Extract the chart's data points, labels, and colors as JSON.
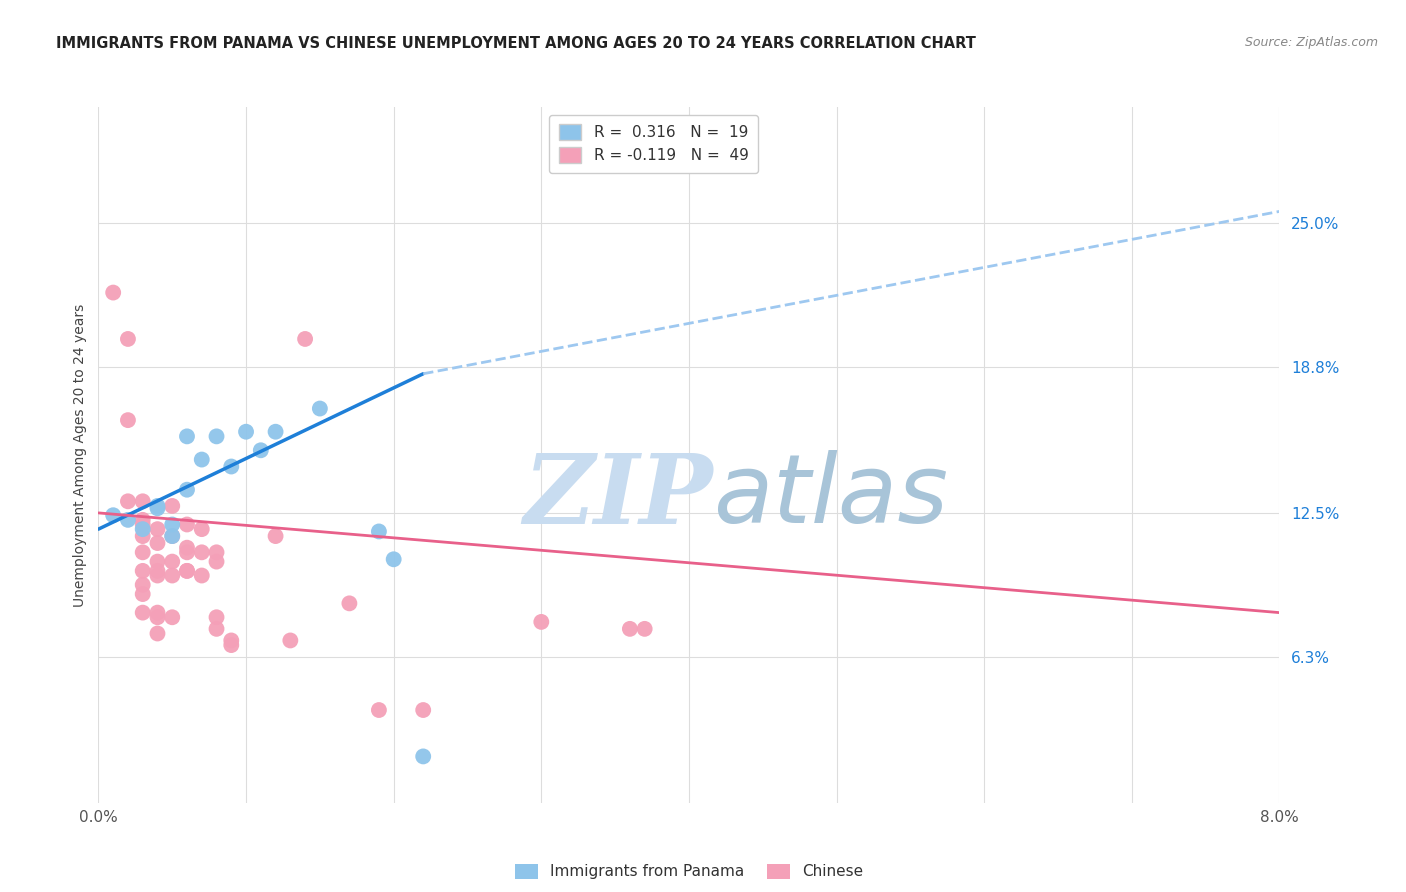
{
  "title": "IMMIGRANTS FROM PANAMA VS CHINESE UNEMPLOYMENT AMONG AGES 20 TO 24 YEARS CORRELATION CHART",
  "source": "Source: ZipAtlas.com",
  "ylabel": "Unemployment Among Ages 20 to 24 years",
  "right_yticks": [
    0.063,
    0.125,
    0.188,
    0.25
  ],
  "right_ytick_labels": [
    "6.3%",
    "12.5%",
    "18.8%",
    "25.0%"
  ],
  "legend_r_entries": [
    {
      "label_r": "R = ",
      "r_val": "0.316",
      "label_n": "  N = ",
      "n_val": "19",
      "color": "#8EC4EA"
    },
    {
      "label_r": "R = ",
      "r_val": "-0.119",
      "label_n": "  N = ",
      "n_val": "49",
      "color": "#F4A0B8"
    }
  ],
  "legend_bottom": [
    "Immigrants from Panama",
    "Chinese"
  ],
  "panama_color": "#8EC4EA",
  "chinese_color": "#F4A0B8",
  "panama_line_color": "#1E7FD8",
  "chinese_line_color": "#E8608A",
  "dashed_line_color": "#9EC8F0",
  "background": "#FFFFFF",
  "grid_color": "#DDDDDD",
  "watermark_zip": "ZIP",
  "watermark_atlas": "atlas",
  "watermark_color_zip": "#C8DCF0",
  "watermark_color_atlas": "#A8C4D8",
  "panama_points": [
    [
      0.001,
      0.124
    ],
    [
      0.002,
      0.122
    ],
    [
      0.003,
      0.118
    ],
    [
      0.004,
      0.128
    ],
    [
      0.004,
      0.127
    ],
    [
      0.005,
      0.115
    ],
    [
      0.005,
      0.12
    ],
    [
      0.006,
      0.135
    ],
    [
      0.006,
      0.158
    ],
    [
      0.007,
      0.148
    ],
    [
      0.008,
      0.158
    ],
    [
      0.009,
      0.145
    ],
    [
      0.01,
      0.16
    ],
    [
      0.011,
      0.152
    ],
    [
      0.012,
      0.16
    ],
    [
      0.015,
      0.17
    ],
    [
      0.019,
      0.117
    ],
    [
      0.02,
      0.105
    ],
    [
      0.022,
      0.02
    ]
  ],
  "chinese_points": [
    [
      0.001,
      0.22
    ],
    [
      0.002,
      0.2
    ],
    [
      0.002,
      0.13
    ],
    [
      0.002,
      0.165
    ],
    [
      0.003,
      0.13
    ],
    [
      0.003,
      0.12
    ],
    [
      0.003,
      0.115
    ],
    [
      0.003,
      0.108
    ],
    [
      0.003,
      0.122
    ],
    [
      0.003,
      0.1
    ],
    [
      0.003,
      0.094
    ],
    [
      0.003,
      0.09
    ],
    [
      0.003,
      0.082
    ],
    [
      0.004,
      0.118
    ],
    [
      0.004,
      0.112
    ],
    [
      0.004,
      0.104
    ],
    [
      0.004,
      0.082
    ],
    [
      0.004,
      0.1
    ],
    [
      0.004,
      0.098
    ],
    [
      0.004,
      0.08
    ],
    [
      0.004,
      0.073
    ],
    [
      0.005,
      0.115
    ],
    [
      0.005,
      0.104
    ],
    [
      0.005,
      0.098
    ],
    [
      0.005,
      0.08
    ],
    [
      0.005,
      0.128
    ],
    [
      0.006,
      0.12
    ],
    [
      0.006,
      0.11
    ],
    [
      0.006,
      0.1
    ],
    [
      0.006,
      0.108
    ],
    [
      0.006,
      0.1
    ],
    [
      0.007,
      0.118
    ],
    [
      0.007,
      0.108
    ],
    [
      0.007,
      0.098
    ],
    [
      0.008,
      0.108
    ],
    [
      0.008,
      0.08
    ],
    [
      0.008,
      0.104
    ],
    [
      0.008,
      0.075
    ],
    [
      0.009,
      0.07
    ],
    [
      0.009,
      0.068
    ],
    [
      0.012,
      0.115
    ],
    [
      0.013,
      0.07
    ],
    [
      0.014,
      0.2
    ],
    [
      0.017,
      0.086
    ],
    [
      0.019,
      0.04
    ],
    [
      0.022,
      0.04
    ],
    [
      0.03,
      0.078
    ],
    [
      0.036,
      0.075
    ],
    [
      0.037,
      0.075
    ]
  ],
  "xlim": [
    0.0,
    0.08
  ],
  "ylim": [
    0.0,
    0.3
  ],
  "panama_line_x": [
    0.0,
    0.022
  ],
  "panama_line_y": [
    0.118,
    0.185
  ],
  "dashed_line_x": [
    0.022,
    0.08
  ],
  "dashed_line_y": [
    0.185,
    0.255
  ],
  "chinese_line_x": [
    0.0,
    0.08
  ],
  "chinese_line_y": [
    0.125,
    0.082
  ]
}
